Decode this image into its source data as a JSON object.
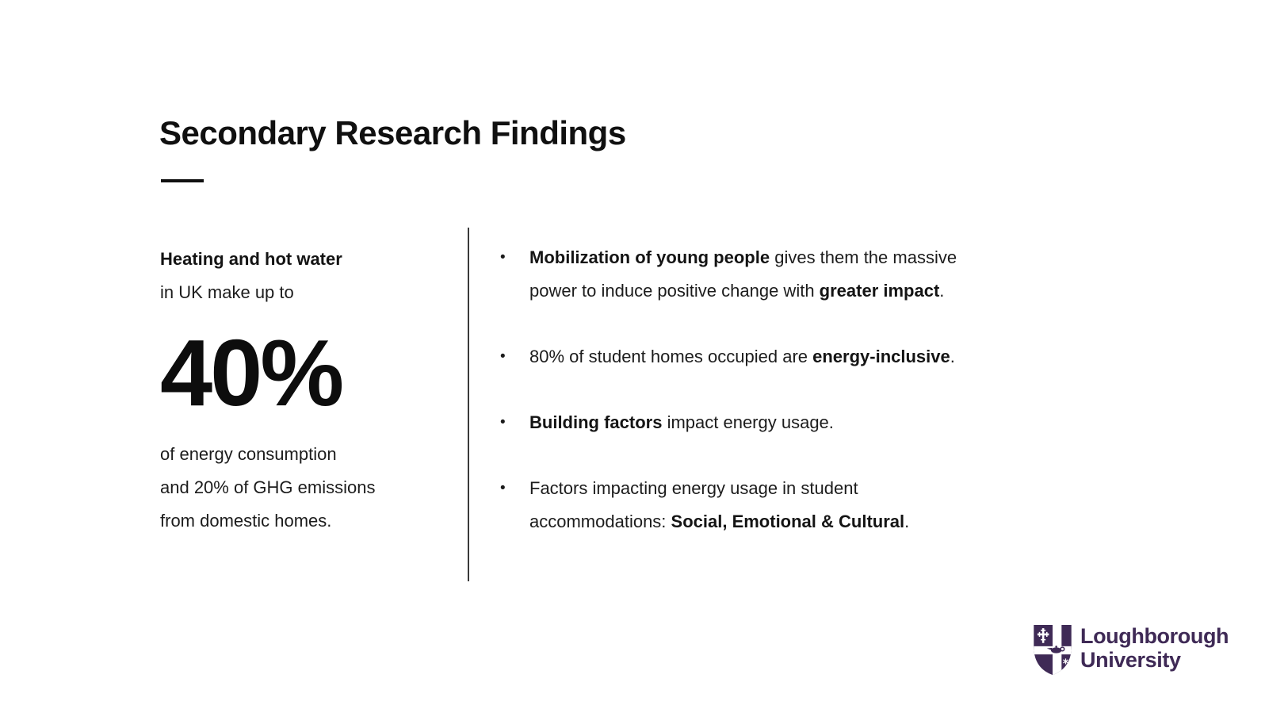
{
  "slide": {
    "title": "Secondary Research Findings",
    "stat_panel": {
      "lead_bold": "Heating and hot water",
      "lead_rest": "in UK make up to",
      "stat": "40%",
      "outro_lines": [
        "of energy consumption",
        "and 20% of GHG emissions",
        "from domestic homes."
      ]
    },
    "bullet_char": "•",
    "bullets": [
      {
        "segments": [
          {
            "text": "Mobilization of young people",
            "bold": true
          },
          {
            "text": " gives them the massive",
            "bold": false
          },
          {
            "br": true
          },
          {
            "text": "power to induce positive change with ",
            "bold": false
          },
          {
            "text": "greater impact",
            "bold": true
          },
          {
            "text": ".",
            "bold": false
          }
        ]
      },
      {
        "segments": [
          {
            "text": "80% of student homes occupied are ",
            "bold": false
          },
          {
            "text": "energy-inclusive",
            "bold": true
          },
          {
            "text": ".",
            "bold": false
          }
        ]
      },
      {
        "segments": [
          {
            "text": "Building factors",
            "bold": true
          },
          {
            "text": " impact energy usage.",
            "bold": false
          }
        ]
      },
      {
        "segments": [
          {
            "text": "Factors impacting energy usage in student",
            "bold": false
          },
          {
            "br": true
          },
          {
            "text": "accommodations: ",
            "bold": false
          },
          {
            "text": "Social, Emotional & Cultural",
            "bold": true
          },
          {
            "text": ".",
            "bold": false
          }
        ]
      }
    ],
    "logo": {
      "line1": "Loughborough",
      "line2": "University",
      "brand_purple": "#3F2A56"
    },
    "colors": {
      "background": "#FFFFFF",
      "text": "#1C1C1C",
      "title": "#101010",
      "brand_purple": "#3F2A56"
    }
  }
}
